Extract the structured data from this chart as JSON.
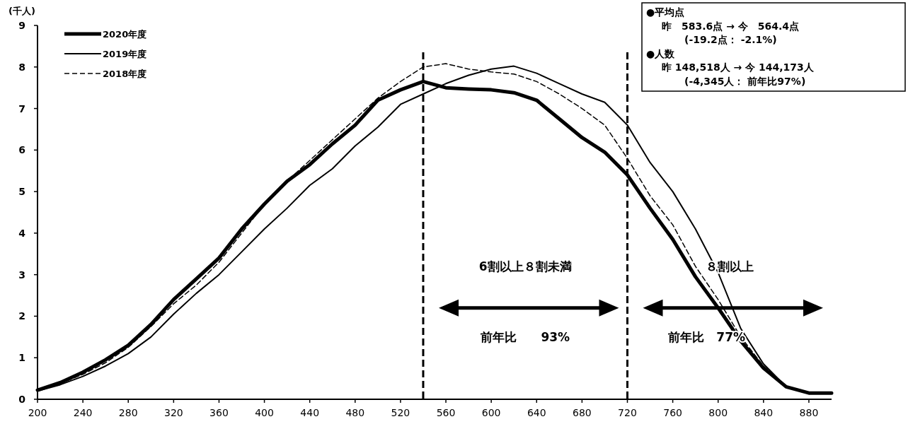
{
  "chart_data": {
    "type": "line",
    "ylabel": "(千人)",
    "x": [
      200,
      220,
      240,
      260,
      280,
      300,
      320,
      340,
      360,
      380,
      400,
      420,
      440,
      460,
      480,
      500,
      520,
      540,
      560,
      580,
      600,
      620,
      640,
      660,
      680,
      700,
      720,
      740,
      760,
      780,
      800,
      820,
      840,
      860,
      880,
      900
    ],
    "series": [
      {
        "name": "2020年度",
        "color": "#000000",
        "line_style": "solid",
        "values": [
          0.22,
          0.4,
          0.65,
          0.95,
          1.3,
          1.8,
          2.4,
          2.9,
          3.4,
          4.1,
          4.7,
          5.25,
          5.65,
          6.15,
          6.6,
          7.2,
          7.45,
          7.65,
          7.5,
          7.47,
          7.45,
          7.38,
          7.2,
          6.75,
          6.3,
          5.95,
          5.4,
          4.6,
          3.85,
          2.95,
          2.2,
          1.4,
          0.75,
          0.3,
          0.15,
          0.15
        ]
      },
      {
        "name": "2019年度",
        "color": "#000000",
        "line_style": "solid",
        "values": [
          0.2,
          0.35,
          0.55,
          0.8,
          1.1,
          1.5,
          2.05,
          2.55,
          3.0,
          3.55,
          4.1,
          4.6,
          5.15,
          5.55,
          6.1,
          6.55,
          7.1,
          7.35,
          7.6,
          7.8,
          7.95,
          8.02,
          7.85,
          7.6,
          7.35,
          7.15,
          6.6,
          5.7,
          5.0,
          4.1,
          3.05,
          1.7,
          0.85,
          0.3,
          0.15,
          0.15
        ]
      },
      {
        "name": "2018年度",
        "color": "#000000",
        "line_style": "dashed",
        "values": [
          0.2,
          0.38,
          0.6,
          0.88,
          1.25,
          1.75,
          2.3,
          2.75,
          3.3,
          4.0,
          4.7,
          5.25,
          5.75,
          6.25,
          6.75,
          7.25,
          7.65,
          8.0,
          8.08,
          7.95,
          7.88,
          7.83,
          7.65,
          7.35,
          7.0,
          6.6,
          5.8,
          4.9,
          4.2,
          3.2,
          2.4,
          1.5,
          0.8,
          0.3,
          0.15,
          0.15
        ]
      }
    ],
    "xlim": [
      200,
      900
    ],
    "xticks": [
      200,
      240,
      280,
      320,
      360,
      400,
      440,
      480,
      520,
      560,
      600,
      640,
      680,
      720,
      760,
      800,
      840,
      880
    ],
    "ylim": [
      0,
      9
    ],
    "yticks": [
      0,
      1,
      2,
      3,
      4,
      5,
      6,
      7,
      8,
      9
    ],
    "grid": false,
    "legend": "top left",
    "ref_lines": [
      {
        "axis": "x",
        "value": 540,
        "line_style": "dashed",
        "color": "#000000"
      },
      {
        "axis": "x",
        "value": 720,
        "line_style": "dashed",
        "color": "#000000"
      }
    ],
    "annotations": [
      "6割以上８割未満",
      "前年比　　93%",
      "８割以上",
      "前年比　77%",
      "●平均点",
      "昨　583.6点 → 今　564.4点",
      "(-19.2点： -2.1%)",
      "●人数",
      "昨 148,518人 → 今 144,173人",
      "(-4,345人： 前年比97%)"
    ]
  }
}
